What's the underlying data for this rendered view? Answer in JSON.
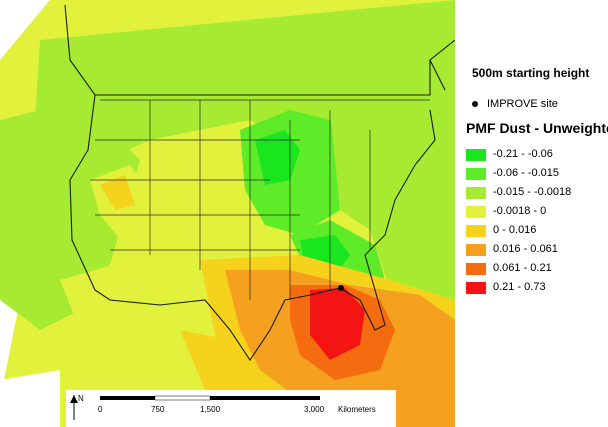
{
  "legend": {
    "subtitle": "500m starting height",
    "site_label": "IMPROVE site",
    "title": "PMF Dust - Unweighted",
    "classes": [
      {
        "label": "-0.21 - -0.06",
        "color": "#19e61e"
      },
      {
        "label": "-0.06 - -0.015",
        "color": "#5eeb28"
      },
      {
        "label": "-0.015 - -0.0018",
        "color": "#a6eb32"
      },
      {
        "label": "-0.0018 - 0",
        "color": "#e2f23c"
      },
      {
        "label": "0 - 0.016",
        "color": "#f5d21c"
      },
      {
        "label": "0.016 - 0.061",
        "color": "#f5a01e"
      },
      {
        "label": "0.061 - 0.21",
        "color": "#f56b0f"
      },
      {
        "label": "0.21 - 0.73",
        "color": "#f51414"
      }
    ]
  },
  "scalebar": {
    "north_label": "N",
    "ticks": [
      "0",
      "750",
      "1,500",
      "3,000"
    ],
    "unit": "Kilometers"
  }
}
